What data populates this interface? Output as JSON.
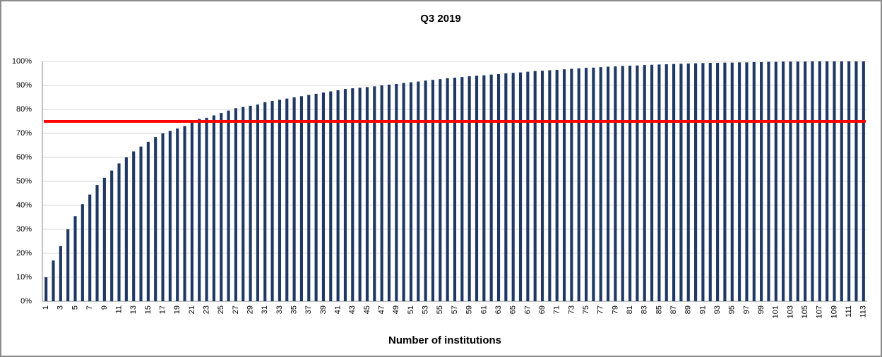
{
  "chart_data": {
    "type": "bar",
    "title": "Q3 2019",
    "x_label": "Number of institutions",
    "categories": [
      "1",
      null,
      "3",
      null,
      "5",
      null,
      "7",
      null,
      "9",
      null,
      "11",
      null,
      "13",
      null,
      "15",
      null,
      "17",
      null,
      "19",
      null,
      "21",
      null,
      "23",
      null,
      "25",
      null,
      "27",
      null,
      "29",
      null,
      "31",
      null,
      "33",
      null,
      "35",
      null,
      "37",
      null,
      "39",
      null,
      "41",
      null,
      "43",
      null,
      "45",
      null,
      "47",
      null,
      "49",
      null,
      "51",
      null,
      "53",
      null,
      "55",
      null,
      "57",
      null,
      "59",
      null,
      "61",
      null,
      "63",
      null,
      "65",
      null,
      "67",
      null,
      "69",
      null,
      "71",
      null,
      "73",
      null,
      "75",
      null,
      "77",
      null,
      "79",
      null,
      "81",
      null,
      "83",
      null,
      "85",
      null,
      "87",
      null,
      "89",
      null,
      "91",
      null,
      "93",
      null,
      "95",
      null,
      "97",
      null,
      "99",
      null,
      "101",
      null,
      "103",
      null,
      "105",
      null,
      "107",
      null,
      "109",
      null,
      "111",
      null,
      "113"
    ],
    "values": [
      10,
      17,
      23,
      30,
      35.5,
      40.5,
      44.5,
      48.5,
      51.5,
      54.5,
      57.5,
      60,
      62.5,
      64.5,
      66.5,
      68.5,
      70,
      71,
      72,
      73,
      75,
      76,
      76.5,
      77.5,
      78.5,
      79.5,
      80.5,
      81,
      81.5,
      82,
      83,
      83.5,
      84,
      84.5,
      85,
      85.5,
      86,
      86.5,
      87,
      87.5,
      88,
      88.5,
      88.8,
      89,
      89.3,
      89.6,
      90,
      90.3,
      90.6,
      91,
      91.3,
      91.6,
      92,
      92.3,
      92.6,
      93,
      93.2,
      93.5,
      93.8,
      94,
      94.2,
      94.5,
      94.7,
      95,
      95.2,
      95.4,
      95.7,
      96,
      96.1,
      96.3,
      96.5,
      96.7,
      96.9,
      97.1,
      97.3,
      97.4,
      97.6,
      97.8,
      97.9,
      98.1,
      98.2,
      98.3,
      98.5,
      98.6,
      98.7,
      98.8,
      98.9,
      99,
      99.1,
      99.2,
      99.3,
      99.4,
      99.4,
      99.5,
      99.5,
      99.6,
      99.6,
      99.7,
      99.7,
      99.8,
      99.8,
      99.9,
      99.9,
      99.9,
      99.9,
      100,
      100,
      100,
      100,
      100,
      100,
      100,
      100
    ],
    "color": "#1f3864",
    "ylim": [
      0,
      100
    ],
    "yticks": [
      {
        "value": 0,
        "label": "0%"
      },
      {
        "value": 10,
        "label": "10%"
      },
      {
        "value": 20,
        "label": "20%"
      },
      {
        "value": 30,
        "label": "30%"
      },
      {
        "value": 40,
        "label": "40%"
      },
      {
        "value": 50,
        "label": "50%"
      },
      {
        "value": 60,
        "label": "60%"
      },
      {
        "value": 70,
        "label": "70%"
      },
      {
        "value": 80,
        "label": "80%"
      },
      {
        "value": 90,
        "label": "90%"
      },
      {
        "value": 100,
        "label": "100%"
      }
    ],
    "grid": true,
    "reference_line": {
      "value": 75,
      "color": "#ff0000"
    }
  }
}
